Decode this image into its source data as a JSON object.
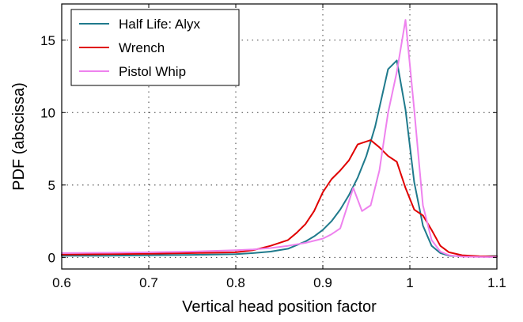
{
  "chart_data": {
    "type": "line",
    "title": "",
    "xlabel": "Vertical head position factor",
    "ylabel": "PDF (abscissa)",
    "xlim": [
      0.6,
      1.1
    ],
    "ylim": [
      -0.8,
      17.5
    ],
    "xticks": [
      0.6,
      0.7,
      0.8,
      0.9,
      1.0,
      1.1
    ],
    "xtick_labels": [
      "0.6",
      "0.7",
      "0.8",
      "0.9",
      "1",
      "1.1"
    ],
    "yticks": [
      0,
      5,
      10,
      15
    ],
    "ytick_labels": [
      "0",
      "5",
      "10",
      "15"
    ],
    "grid": true,
    "legend_position": "top-left",
    "series": [
      {
        "name": "Half Life: Alyx",
        "color": "#1f7a8c",
        "x": [
          0.6,
          0.65,
          0.7,
          0.75,
          0.8,
          0.82,
          0.84,
          0.86,
          0.87,
          0.88,
          0.89,
          0.9,
          0.91,
          0.92,
          0.93,
          0.94,
          0.95,
          0.96,
          0.975,
          0.985,
          0.995,
          1.005,
          1.015,
          1.025,
          1.035,
          1.045,
          1.06,
          1.08,
          1.1
        ],
        "y": [
          0.12,
          0.12,
          0.15,
          0.18,
          0.22,
          0.3,
          0.4,
          0.6,
          0.85,
          1.1,
          1.45,
          1.9,
          2.5,
          3.3,
          4.3,
          5.5,
          7.0,
          9.0,
          13.0,
          13.6,
          10.2,
          5.2,
          2.2,
          0.8,
          0.3,
          0.12,
          0.08,
          0.06,
          0.1
        ]
      },
      {
        "name": "Wrench",
        "color": "#e00000",
        "x": [
          0.6,
          0.65,
          0.7,
          0.75,
          0.8,
          0.82,
          0.84,
          0.86,
          0.87,
          0.88,
          0.89,
          0.9,
          0.91,
          0.92,
          0.93,
          0.94,
          0.945,
          0.955,
          0.965,
          0.975,
          0.985,
          0.995,
          1.005,
          1.015,
          1.025,
          1.035,
          1.045,
          1.06,
          1.08,
          1.1
        ],
        "y": [
          0.2,
          0.22,
          0.25,
          0.3,
          0.35,
          0.5,
          0.8,
          1.2,
          1.7,
          2.3,
          3.2,
          4.5,
          5.4,
          6.0,
          6.7,
          7.8,
          7.9,
          8.1,
          7.6,
          7.0,
          6.6,
          4.8,
          3.3,
          2.9,
          1.9,
          0.8,
          0.35,
          0.15,
          0.08,
          0.05
        ]
      },
      {
        "name": "Pistol Whip",
        "color": "#ee82ee",
        "x": [
          0.6,
          0.65,
          0.7,
          0.75,
          0.8,
          0.82,
          0.84,
          0.86,
          0.88,
          0.9,
          0.91,
          0.92,
          0.935,
          0.945,
          0.955,
          0.965,
          0.975,
          0.985,
          0.995,
          1.005,
          1.015,
          1.025,
          1.035,
          1.045,
          1.06,
          1.08,
          1.1
        ],
        "y": [
          0.3,
          0.32,
          0.35,
          0.4,
          0.5,
          0.55,
          0.65,
          0.8,
          1.0,
          1.3,
          1.6,
          2.0,
          4.8,
          3.2,
          3.6,
          6.0,
          10.0,
          12.8,
          16.4,
          10.2,
          3.6,
          1.2,
          0.4,
          0.15,
          0.05,
          0.03,
          0.02
        ]
      }
    ]
  }
}
